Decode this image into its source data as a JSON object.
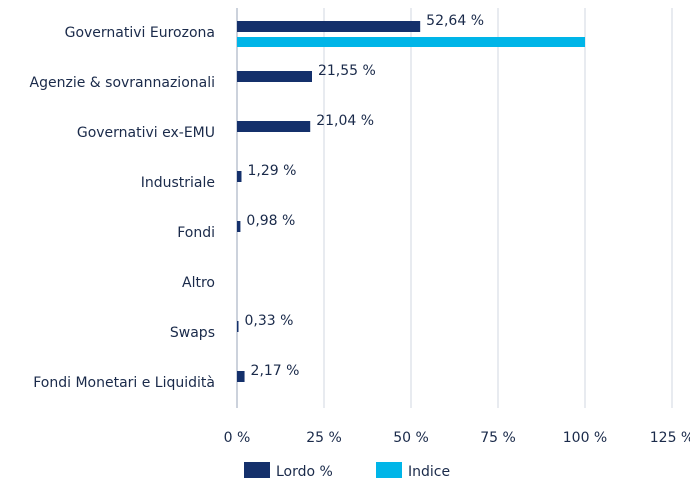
{
  "chart_data": {
    "type": "hbar",
    "categories": [
      "Governativi Eurozona",
      "Agenzie & sovrannazionali",
      "Governativi ex-EMU",
      "Industriale",
      "Fondi",
      "Altro",
      "Swaps",
      "Fondi Monetari e Liquidità"
    ],
    "series": [
      {
        "name": "Lordo %",
        "color": "#14306b",
        "values": [
          52.64,
          21.55,
          21.04,
          1.29,
          0.98,
          null,
          0.33,
          2.17
        ],
        "value_labels": [
          "52,64 %",
          "21,55 %",
          "21,04 %",
          "1,29 %",
          "0,98 %",
          null,
          "0,33 %",
          "2,17 %"
        ]
      },
      {
        "name": "Indice",
        "color": "#00b5e8",
        "values": [
          100,
          null,
          null,
          null,
          null,
          null,
          null,
          null
        ]
      }
    ],
    "xlim": [
      0,
      125
    ],
    "xticks": [
      {
        "value": 0,
        "label": "0 %"
      },
      {
        "value": 25,
        "label": "25 %"
      },
      {
        "value": 50,
        "label": "50 %"
      },
      {
        "value": 75,
        "label": "75 %"
      },
      {
        "value": 100,
        "label": "100 %"
      },
      {
        "value": 125,
        "label": "125 %"
      }
    ],
    "grid": true,
    "legend": "bottom"
  }
}
